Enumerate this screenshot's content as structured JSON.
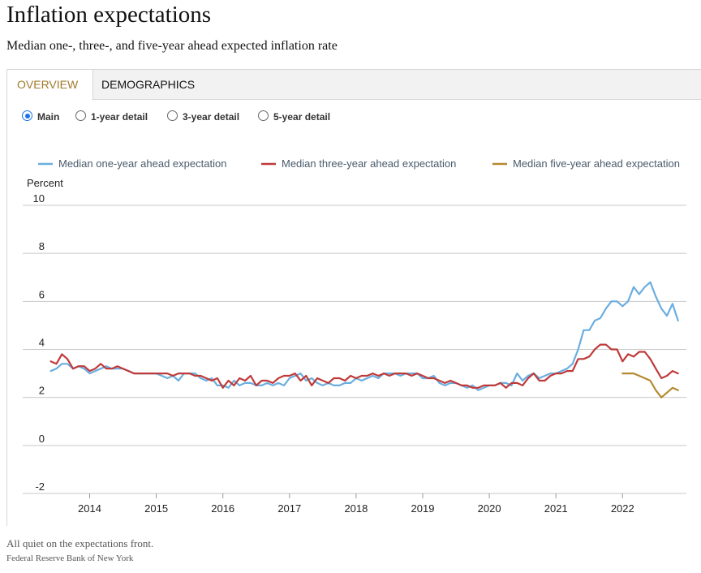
{
  "header": {
    "title": "Inflation expectations",
    "subtitle": "Median one-, three-, and five-year ahead expected inflation rate"
  },
  "tabs": [
    {
      "label": "OVERVIEW",
      "active": true
    },
    {
      "label": "DEMOGRAPHICS",
      "active": false
    }
  ],
  "radios": [
    {
      "label": "Main",
      "selected": true
    },
    {
      "label": "1-year detail",
      "selected": false
    },
    {
      "label": "3-year detail",
      "selected": false
    },
    {
      "label": "5-year detail",
      "selected": false
    }
  ],
  "colors": {
    "one_year": "#6aaee0",
    "three_year": "#bf3a3a",
    "five_year": "#b58a2f",
    "grid": "#c8c8c8",
    "legend_text": "#4a5a6a",
    "active_tab_text": "#a07a2c"
  },
  "chart_data": {
    "type": "line",
    "ylabel": "Percent",
    "ylim": [
      -2,
      10
    ],
    "yticks": [
      -2,
      0,
      2,
      4,
      6,
      8,
      10
    ],
    "xticks": [
      "2014",
      "2015",
      "2016",
      "2017",
      "2018",
      "2019",
      "2020",
      "2021",
      "2022"
    ],
    "xlim": [
      "2013-06",
      "2022-12"
    ],
    "grid": "horizontal",
    "legend": "top",
    "series": [
      {
        "name": "Median one-year ahead expectation",
        "color": "#6aaee0",
        "x": [
          "2013-06",
          "2013-07",
          "2013-08",
          "2013-09",
          "2013-10",
          "2013-11",
          "2013-12",
          "2014-01",
          "2014-02",
          "2014-03",
          "2014-04",
          "2014-05",
          "2014-06",
          "2014-07",
          "2014-08",
          "2014-09",
          "2014-10",
          "2014-11",
          "2014-12",
          "2015-01",
          "2015-02",
          "2015-03",
          "2015-04",
          "2015-05",
          "2015-06",
          "2015-07",
          "2015-08",
          "2015-09",
          "2015-10",
          "2015-11",
          "2015-12",
          "2016-01",
          "2016-02",
          "2016-03",
          "2016-04",
          "2016-05",
          "2016-06",
          "2016-07",
          "2016-08",
          "2016-09",
          "2016-10",
          "2016-11",
          "2016-12",
          "2017-01",
          "2017-02",
          "2017-03",
          "2017-04",
          "2017-05",
          "2017-06",
          "2017-07",
          "2017-08",
          "2017-09",
          "2017-10",
          "2017-11",
          "2017-12",
          "2018-01",
          "2018-02",
          "2018-03",
          "2018-04",
          "2018-05",
          "2018-06",
          "2018-07",
          "2018-08",
          "2018-09",
          "2018-10",
          "2018-11",
          "2018-12",
          "2019-01",
          "2019-02",
          "2019-03",
          "2019-04",
          "2019-05",
          "2019-06",
          "2019-07",
          "2019-08",
          "2019-09",
          "2019-10",
          "2019-11",
          "2019-12",
          "2020-01",
          "2020-02",
          "2020-03",
          "2020-04",
          "2020-05",
          "2020-06",
          "2020-07",
          "2020-08",
          "2020-09",
          "2020-10",
          "2020-11",
          "2020-12",
          "2021-01",
          "2021-02",
          "2021-03",
          "2021-04",
          "2021-05",
          "2021-06",
          "2021-07",
          "2021-08",
          "2021-09",
          "2021-10",
          "2021-11",
          "2021-12",
          "2022-01",
          "2022-02",
          "2022-03",
          "2022-04",
          "2022-05",
          "2022-06",
          "2022-07",
          "2022-08",
          "2022-09",
          "2022-10",
          "2022-11"
        ],
        "values": [
          3.1,
          3.2,
          3.4,
          3.4,
          3.2,
          3.3,
          3.2,
          3.0,
          3.1,
          3.2,
          3.3,
          3.2,
          3.2,
          3.2,
          3.1,
          3.0,
          3.0,
          3.0,
          3.0,
          3.0,
          2.9,
          2.8,
          2.9,
          2.7,
          3.0,
          3.0,
          3.0,
          2.8,
          2.7,
          2.8,
          2.5,
          2.5,
          2.4,
          2.7,
          2.5,
          2.6,
          2.6,
          2.5,
          2.5,
          2.6,
          2.5,
          2.6,
          2.5,
          2.8,
          2.9,
          3.0,
          2.7,
          2.8,
          2.6,
          2.5,
          2.6,
          2.5,
          2.5,
          2.6,
          2.6,
          2.8,
          2.7,
          2.8,
          2.9,
          2.8,
          3.0,
          3.0,
          3.0,
          2.9,
          3.0,
          3.0,
          3.0,
          2.8,
          2.8,
          2.9,
          2.6,
          2.5,
          2.6,
          2.6,
          2.5,
          2.4,
          2.5,
          2.3,
          2.4,
          2.5,
          2.5,
          2.6,
          2.6,
          2.5,
          3.0,
          2.7,
          2.9,
          3.0,
          2.8,
          2.9,
          3.0,
          3.0,
          3.1,
          3.2,
          3.4,
          4.0,
          4.8,
          4.8,
          5.2,
          5.3,
          5.7,
          6.0,
          6.0,
          5.8,
          6.0,
          6.6,
          6.3,
          6.6,
          6.8,
          6.2,
          5.7,
          5.4,
          5.9,
          5.2
        ]
      },
      {
        "name": "Median three-year ahead expectation",
        "color": "#bf3a3a",
        "x": [
          "2013-06",
          "2013-07",
          "2013-08",
          "2013-09",
          "2013-10",
          "2013-11",
          "2013-12",
          "2014-01",
          "2014-02",
          "2014-03",
          "2014-04",
          "2014-05",
          "2014-06",
          "2014-07",
          "2014-08",
          "2014-09",
          "2014-10",
          "2014-11",
          "2014-12",
          "2015-01",
          "2015-02",
          "2015-03",
          "2015-04",
          "2015-05",
          "2015-06",
          "2015-07",
          "2015-08",
          "2015-09",
          "2015-10",
          "2015-11",
          "2015-12",
          "2016-01",
          "2016-02",
          "2016-03",
          "2016-04",
          "2016-05",
          "2016-06",
          "2016-07",
          "2016-08",
          "2016-09",
          "2016-10",
          "2016-11",
          "2016-12",
          "2017-01",
          "2017-02",
          "2017-03",
          "2017-04",
          "2017-05",
          "2017-06",
          "2017-07",
          "2017-08",
          "2017-09",
          "2017-10",
          "2017-11",
          "2017-12",
          "2018-01",
          "2018-02",
          "2018-03",
          "2018-04",
          "2018-05",
          "2018-06",
          "2018-07",
          "2018-08",
          "2018-09",
          "2018-10",
          "2018-11",
          "2018-12",
          "2019-01",
          "2019-02",
          "2019-03",
          "2019-04",
          "2019-05",
          "2019-06",
          "2019-07",
          "2019-08",
          "2019-09",
          "2019-10",
          "2019-11",
          "2019-12",
          "2020-01",
          "2020-02",
          "2020-03",
          "2020-04",
          "2020-05",
          "2020-06",
          "2020-07",
          "2020-08",
          "2020-09",
          "2020-10",
          "2020-11",
          "2020-12",
          "2021-01",
          "2021-02",
          "2021-03",
          "2021-04",
          "2021-05",
          "2021-06",
          "2021-07",
          "2021-08",
          "2021-09",
          "2021-10",
          "2021-11",
          "2021-12",
          "2022-01",
          "2022-02",
          "2022-03",
          "2022-04",
          "2022-05",
          "2022-06",
          "2022-07",
          "2022-08",
          "2022-09",
          "2022-10",
          "2022-11"
        ],
        "values": [
          3.5,
          3.4,
          3.8,
          3.6,
          3.2,
          3.3,
          3.3,
          3.1,
          3.2,
          3.4,
          3.2,
          3.2,
          3.3,
          3.2,
          3.1,
          3.0,
          3.0,
          3.0,
          3.0,
          3.0,
          3.0,
          3.0,
          2.9,
          3.0,
          3.0,
          3.0,
          2.9,
          2.9,
          2.8,
          2.7,
          2.8,
          2.4,
          2.7,
          2.5,
          2.8,
          2.7,
          2.9,
          2.5,
          2.7,
          2.7,
          2.6,
          2.8,
          2.9,
          2.9,
          3.0,
          2.7,
          2.9,
          2.5,
          2.8,
          2.7,
          2.6,
          2.8,
          2.8,
          2.7,
          2.9,
          2.8,
          2.9,
          2.9,
          3.0,
          2.9,
          3.0,
          2.9,
          3.0,
          3.0,
          3.0,
          2.9,
          3.0,
          2.9,
          2.8,
          2.8,
          2.7,
          2.6,
          2.7,
          2.6,
          2.5,
          2.5,
          2.4,
          2.4,
          2.5,
          2.5,
          2.5,
          2.6,
          2.4,
          2.6,
          2.6,
          2.5,
          2.8,
          3.0,
          2.7,
          2.7,
          2.9,
          3.0,
          3.0,
          3.1,
          3.1,
          3.6,
          3.6,
          3.7,
          4.0,
          4.2,
          4.2,
          4.0,
          4.0,
          3.5,
          3.8,
          3.7,
          3.9,
          3.9,
          3.6,
          3.2,
          2.8,
          2.9,
          3.1,
          3.0
        ]
      },
      {
        "name": "Median five-year ahead expectation",
        "color": "#b58a2f",
        "x": [
          "2022-01",
          "2022-02",
          "2022-03",
          "2022-04",
          "2022-05",
          "2022-06",
          "2022-07",
          "2022-08",
          "2022-09",
          "2022-10",
          "2022-11"
        ],
        "values": [
          3.0,
          3.0,
          3.0,
          2.9,
          2.8,
          2.7,
          2.3,
          2.0,
          2.2,
          2.4,
          2.3
        ]
      }
    ]
  },
  "footer": {
    "caption": "All quiet on the expectations front.",
    "source": "Federal Reserve Bank of New York"
  }
}
